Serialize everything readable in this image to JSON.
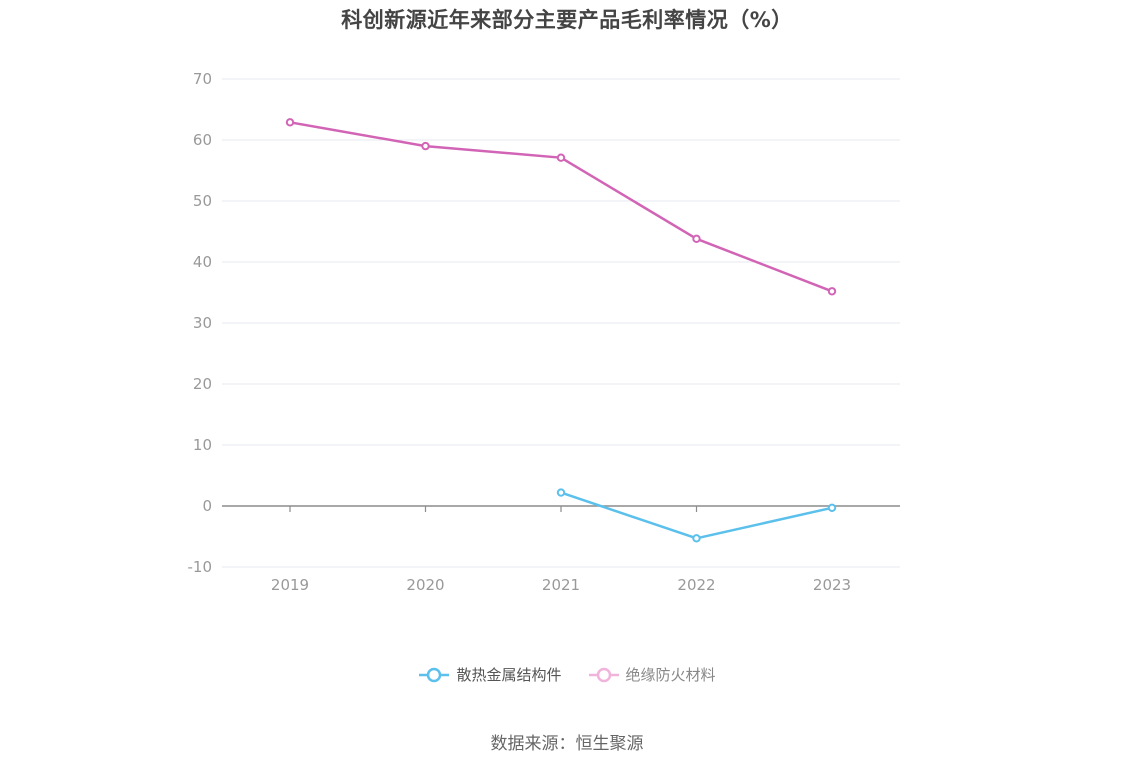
{
  "title": "科创新源近年来部分主要产品毛利率情况（%）",
  "source": "数据来源：恒生聚源",
  "chart_data": {
    "type": "line",
    "categories": [
      "2019",
      "2020",
      "2021",
      "2022",
      "2023"
    ],
    "ylim": [
      -10,
      70
    ],
    "yticks": [
      -10,
      0,
      10,
      20,
      30,
      40,
      50,
      60,
      70
    ],
    "grid": true,
    "legend_position": "bottom",
    "series": [
      {
        "name": "散热金属结构件",
        "color": "#5bc0eb",
        "values": [
          null,
          null,
          2.2,
          -5.3,
          -0.3
        ]
      },
      {
        "name": "绝缘防火材料",
        "color": "#d264b6",
        "legend_color": "#f0b3dc",
        "values": [
          62.9,
          59.0,
          57.1,
          43.8,
          35.2
        ]
      }
    ]
  }
}
